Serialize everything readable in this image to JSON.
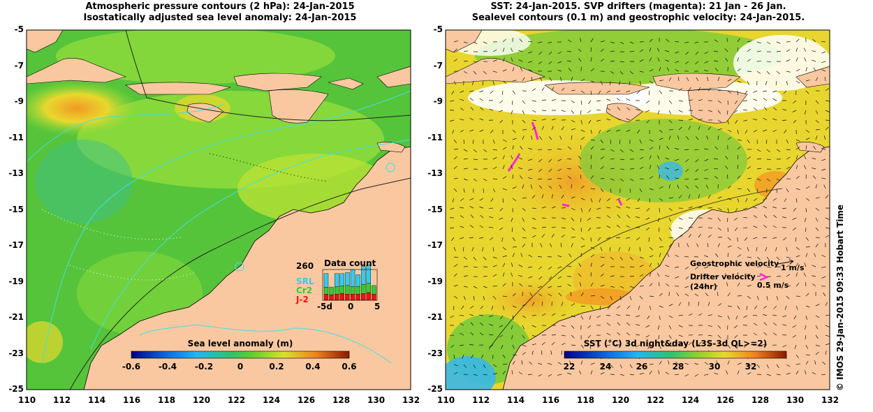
{
  "left_panel": {
    "title_line1": "Atmospheric pressure contours (2 hPa): 24-Jan-2015",
    "title_line2": "Isostatically adjusted sea level anomaly: 24-Jan-2015",
    "colorbar": {
      "label": "Sea level anomaly (m)",
      "ticks": [
        "-0.6",
        "-0.4",
        "-0.2",
        "0",
        "0.2",
        "0.4",
        "0.6"
      ]
    },
    "data_count": {
      "title": "Data count",
      "max_label": "260",
      "series": [
        {
          "name": "SRL",
          "color": "#33ccee"
        },
        {
          "name": "Cr2",
          "color": "#33cc33"
        },
        {
          "name": "J-2",
          "color": "#ee1111"
        }
      ],
      "x_ticks": [
        "-5d",
        "0",
        "5"
      ],
      "bars": [
        {
          "day": -5,
          "SRL": 0.45,
          "Cr2": 0.22,
          "J2": 0.2
        },
        {
          "day": -4,
          "SRL": 0.0,
          "Cr2": 0.25,
          "J2": 0.18
        },
        {
          "day": -3,
          "SRL": 0.42,
          "Cr2": 0.25,
          "J2": 0.2
        },
        {
          "day": -2,
          "SRL": 0.4,
          "Cr2": 0.25,
          "J2": 0.22
        },
        {
          "day": -1,
          "SRL": 0.42,
          "Cr2": 0.28,
          "J2": 0.2
        },
        {
          "day": 0,
          "SRL": 0.55,
          "Cr2": 0.25,
          "J2": 0.2
        },
        {
          "day": 1,
          "SRL": 0.38,
          "Cr2": 0.25,
          "J2": 0.2
        },
        {
          "day": 2,
          "SRL": 0.58,
          "Cr2": 0.3,
          "J2": 0.22
        },
        {
          "day": 3,
          "SRL": 0.6,
          "Cr2": 0.3,
          "J2": 0.25
        },
        {
          "day": 4,
          "SRL": 0.0,
          "Cr2": 0.28,
          "J2": 0.2
        }
      ]
    }
  },
  "right_panel": {
    "title_line1": "SST: 24-Jan-2015. SVP drifters (magenta): 21 Jan - 26 Jan.",
    "title_line2": "Sealevel contours (0.1 m) and geostrophic velocity: 24-Jan-2015.",
    "colorbar": {
      "label": "SST (°C) 3d night&day (L3S-3d QL>=2)",
      "ticks": [
        "22",
        "24",
        "26",
        "28",
        "30",
        "32"
      ]
    },
    "velocity_legend": {
      "geostrophic_label": "Geostrophic velocity",
      "geostrophic_value": "1 m/s",
      "drifter_label": "Drifter velocity",
      "drifter_sub": "(24hr)",
      "drifter_value": "0.5 m/s"
    },
    "credit": "© IMOS 29-Jan-2015 09:33 Hobart Time"
  },
  "axes": {
    "lon_ticks": [
      "110",
      "112",
      "114",
      "116",
      "118",
      "120",
      "122",
      "124",
      "126",
      "128",
      "130",
      "132"
    ],
    "lat_ticks": [
      "-5",
      "-7",
      "-9",
      "-11",
      "-13",
      "-15",
      "-17",
      "-19",
      "-21",
      "-23",
      "-25"
    ]
  },
  "colors": {
    "land": "#f9c8a0",
    "ocean_green": "#55c43a",
    "ocean_light": "#8fdc3c",
    "warm_yellow": "#e8d82e",
    "warm_orange": "#f29a24",
    "teal": "#3fbf8a",
    "sst_orange": "#f0b42c",
    "sst_yellow": "#e8d62e",
    "sst_green": "#7acb3a",
    "drifter": "#ff22dd"
  }
}
